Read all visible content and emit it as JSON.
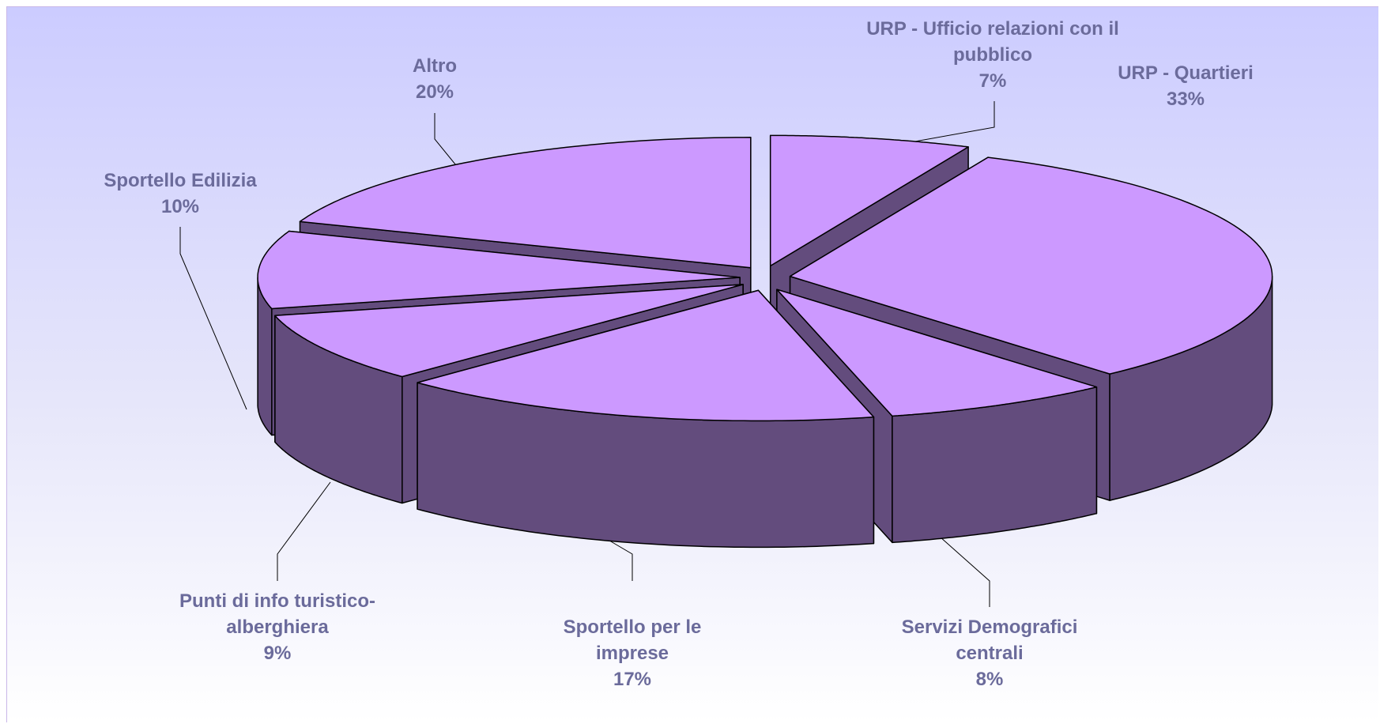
{
  "chart_data": {
    "type": "pie3d",
    "categories": [
      "URP - Ufficio relazioni con il pubblico",
      "URP - Quartieri",
      "Servizi Demografici centrali",
      "Sportello per le imprese",
      "Punti di info turistico-alberghiera",
      "Sportello Edilizia",
      "Altro"
    ],
    "values": [
      7,
      33,
      8,
      17,
      9,
      10,
      20
    ],
    "value_labels": [
      "7%",
      "33%",
      "8%",
      "17%",
      "9%",
      "10%",
      "20%"
    ],
    "color": "#cc99ff",
    "side_color": "#634c7d"
  }
}
